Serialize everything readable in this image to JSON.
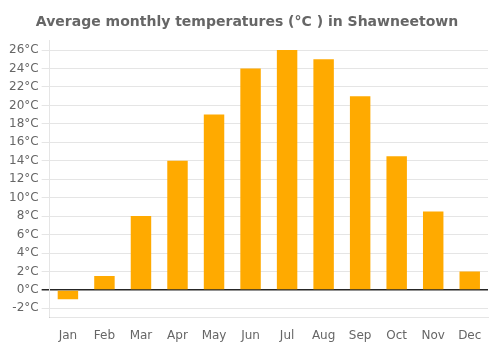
{
  "chart_data": {
    "type": "bar",
    "title": "Average monthly temperatures (°C ) in Shawneetown",
    "categories": [
      "Jan",
      "Feb",
      "Mar",
      "Apr",
      "May",
      "Jun",
      "Jul",
      "Aug",
      "Sep",
      "Oct",
      "Nov",
      "Dec"
    ],
    "values": [
      -1.0,
      1.5,
      8.0,
      14.0,
      19.0,
      24.0,
      26.0,
      25.0,
      21.0,
      14.5,
      8.5,
      2.0
    ],
    "color": "#FFAA00",
    "ylim": [
      -3,
      27
    ],
    "yticks": [
      {
        "value": -2,
        "label": "-2°C"
      },
      {
        "value": 0,
        "label": "0°C"
      },
      {
        "value": 2,
        "label": "2°C"
      },
      {
        "value": 4,
        "label": "4°C"
      },
      {
        "value": 6,
        "label": "6°C"
      },
      {
        "value": 8,
        "label": "8°C"
      },
      {
        "value": 10,
        "label": "10°C"
      },
      {
        "value": 12,
        "label": "12°C"
      },
      {
        "value": 14,
        "label": "14°C"
      },
      {
        "value": 16,
        "label": "16°C"
      },
      {
        "value": 18,
        "label": "18°C"
      },
      {
        "value": 20,
        "label": "20°C"
      },
      {
        "value": 22,
        "label": "22°C"
      },
      {
        "value": 24,
        "label": "24°C"
      },
      {
        "value": 26,
        "label": "26°C"
      }
    ],
    "grid": true
  }
}
